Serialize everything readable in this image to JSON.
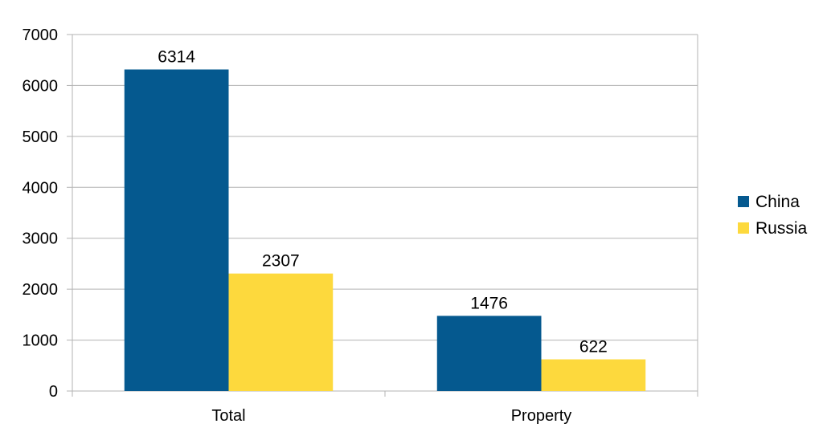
{
  "chart_data": {
    "type": "bar",
    "title": "",
    "xlabel": "",
    "ylabel": "",
    "categories": [
      "Total",
      "Property"
    ],
    "series": [
      {
        "name": "China",
        "values": [
          6314,
          1476
        ],
        "color": "#05598f"
      },
      {
        "name": "Russia",
        "values": [
          2307,
          622
        ],
        "color": "#fdd93d"
      }
    ],
    "ylim": [
      0,
      7000
    ],
    "yticks": [
      "0",
      "1000",
      "2000",
      "3000",
      "4000",
      "5000",
      "6000",
      "7000"
    ],
    "data_labels": [
      [
        "6314",
        "1476"
      ],
      [
        "2307",
        "622"
      ]
    ],
    "grid": true,
    "legend_position": "right"
  }
}
